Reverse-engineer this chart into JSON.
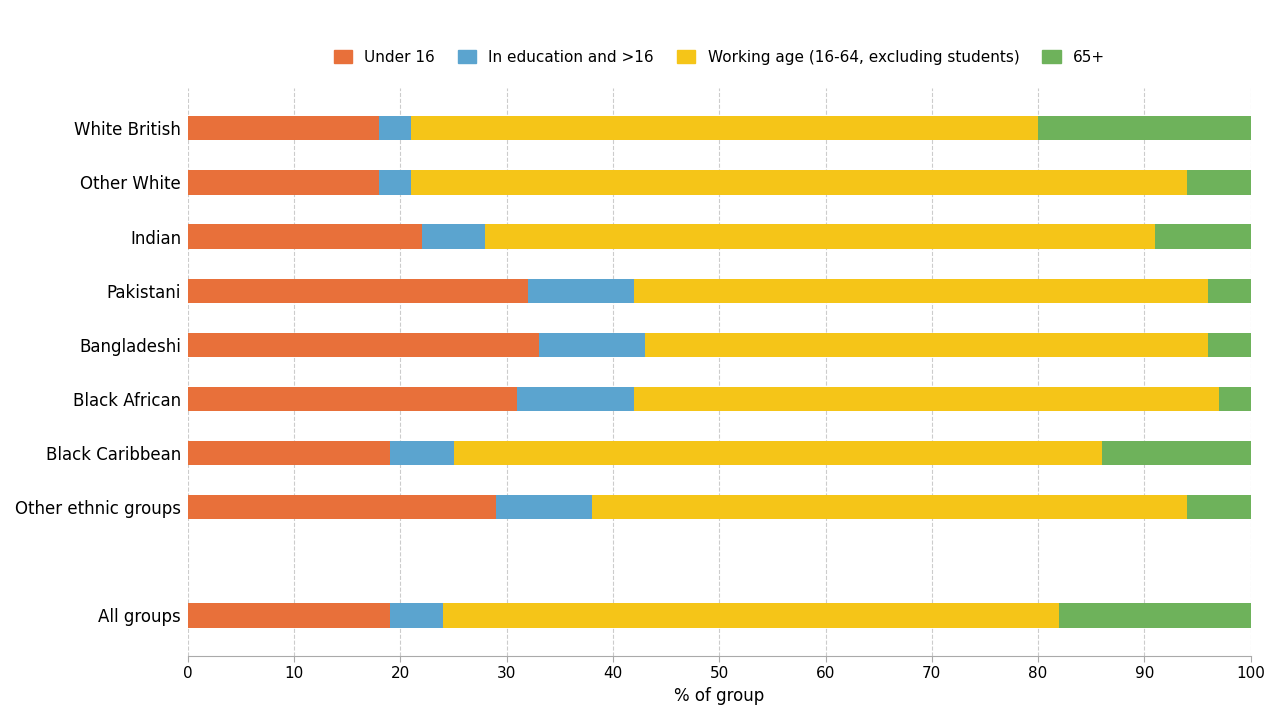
{
  "groups": [
    "White British",
    "Other White",
    "Indian",
    "Pakistani",
    "Bangladeshi",
    "Black African",
    "Black Caribbean",
    "Other ethnic groups",
    "",
    "All groups"
  ],
  "under16": [
    18,
    18,
    22,
    32,
    33,
    31,
    19,
    29,
    0,
    19
  ],
  "in_edu": [
    3,
    3,
    6,
    10,
    10,
    11,
    6,
    9,
    0,
    5
  ],
  "working": [
    59,
    73,
    63,
    54,
    53,
    55,
    61,
    56,
    0,
    58
  ],
  "over65": [
    20,
    6,
    9,
    4,
    4,
    3,
    14,
    6,
    0,
    18
  ],
  "colors": {
    "under16": "#E8703A",
    "in_edu": "#5BA4CF",
    "working": "#F5C518",
    "over65": "#6EB25B"
  },
  "legend_labels": [
    "Under 16",
    "In education and >16",
    "Working age (16-64, excluding students)",
    "65+"
  ],
  "xlabel": "% of group",
  "xlim": [
    0,
    100
  ],
  "xticks": [
    0,
    10,
    20,
    30,
    40,
    50,
    60,
    70,
    80,
    90,
    100
  ],
  "background_color": "#ffffff",
  "bar_height": 0.45,
  "figsize": [
    12.8,
    7.2
  ],
  "dpi": 100
}
